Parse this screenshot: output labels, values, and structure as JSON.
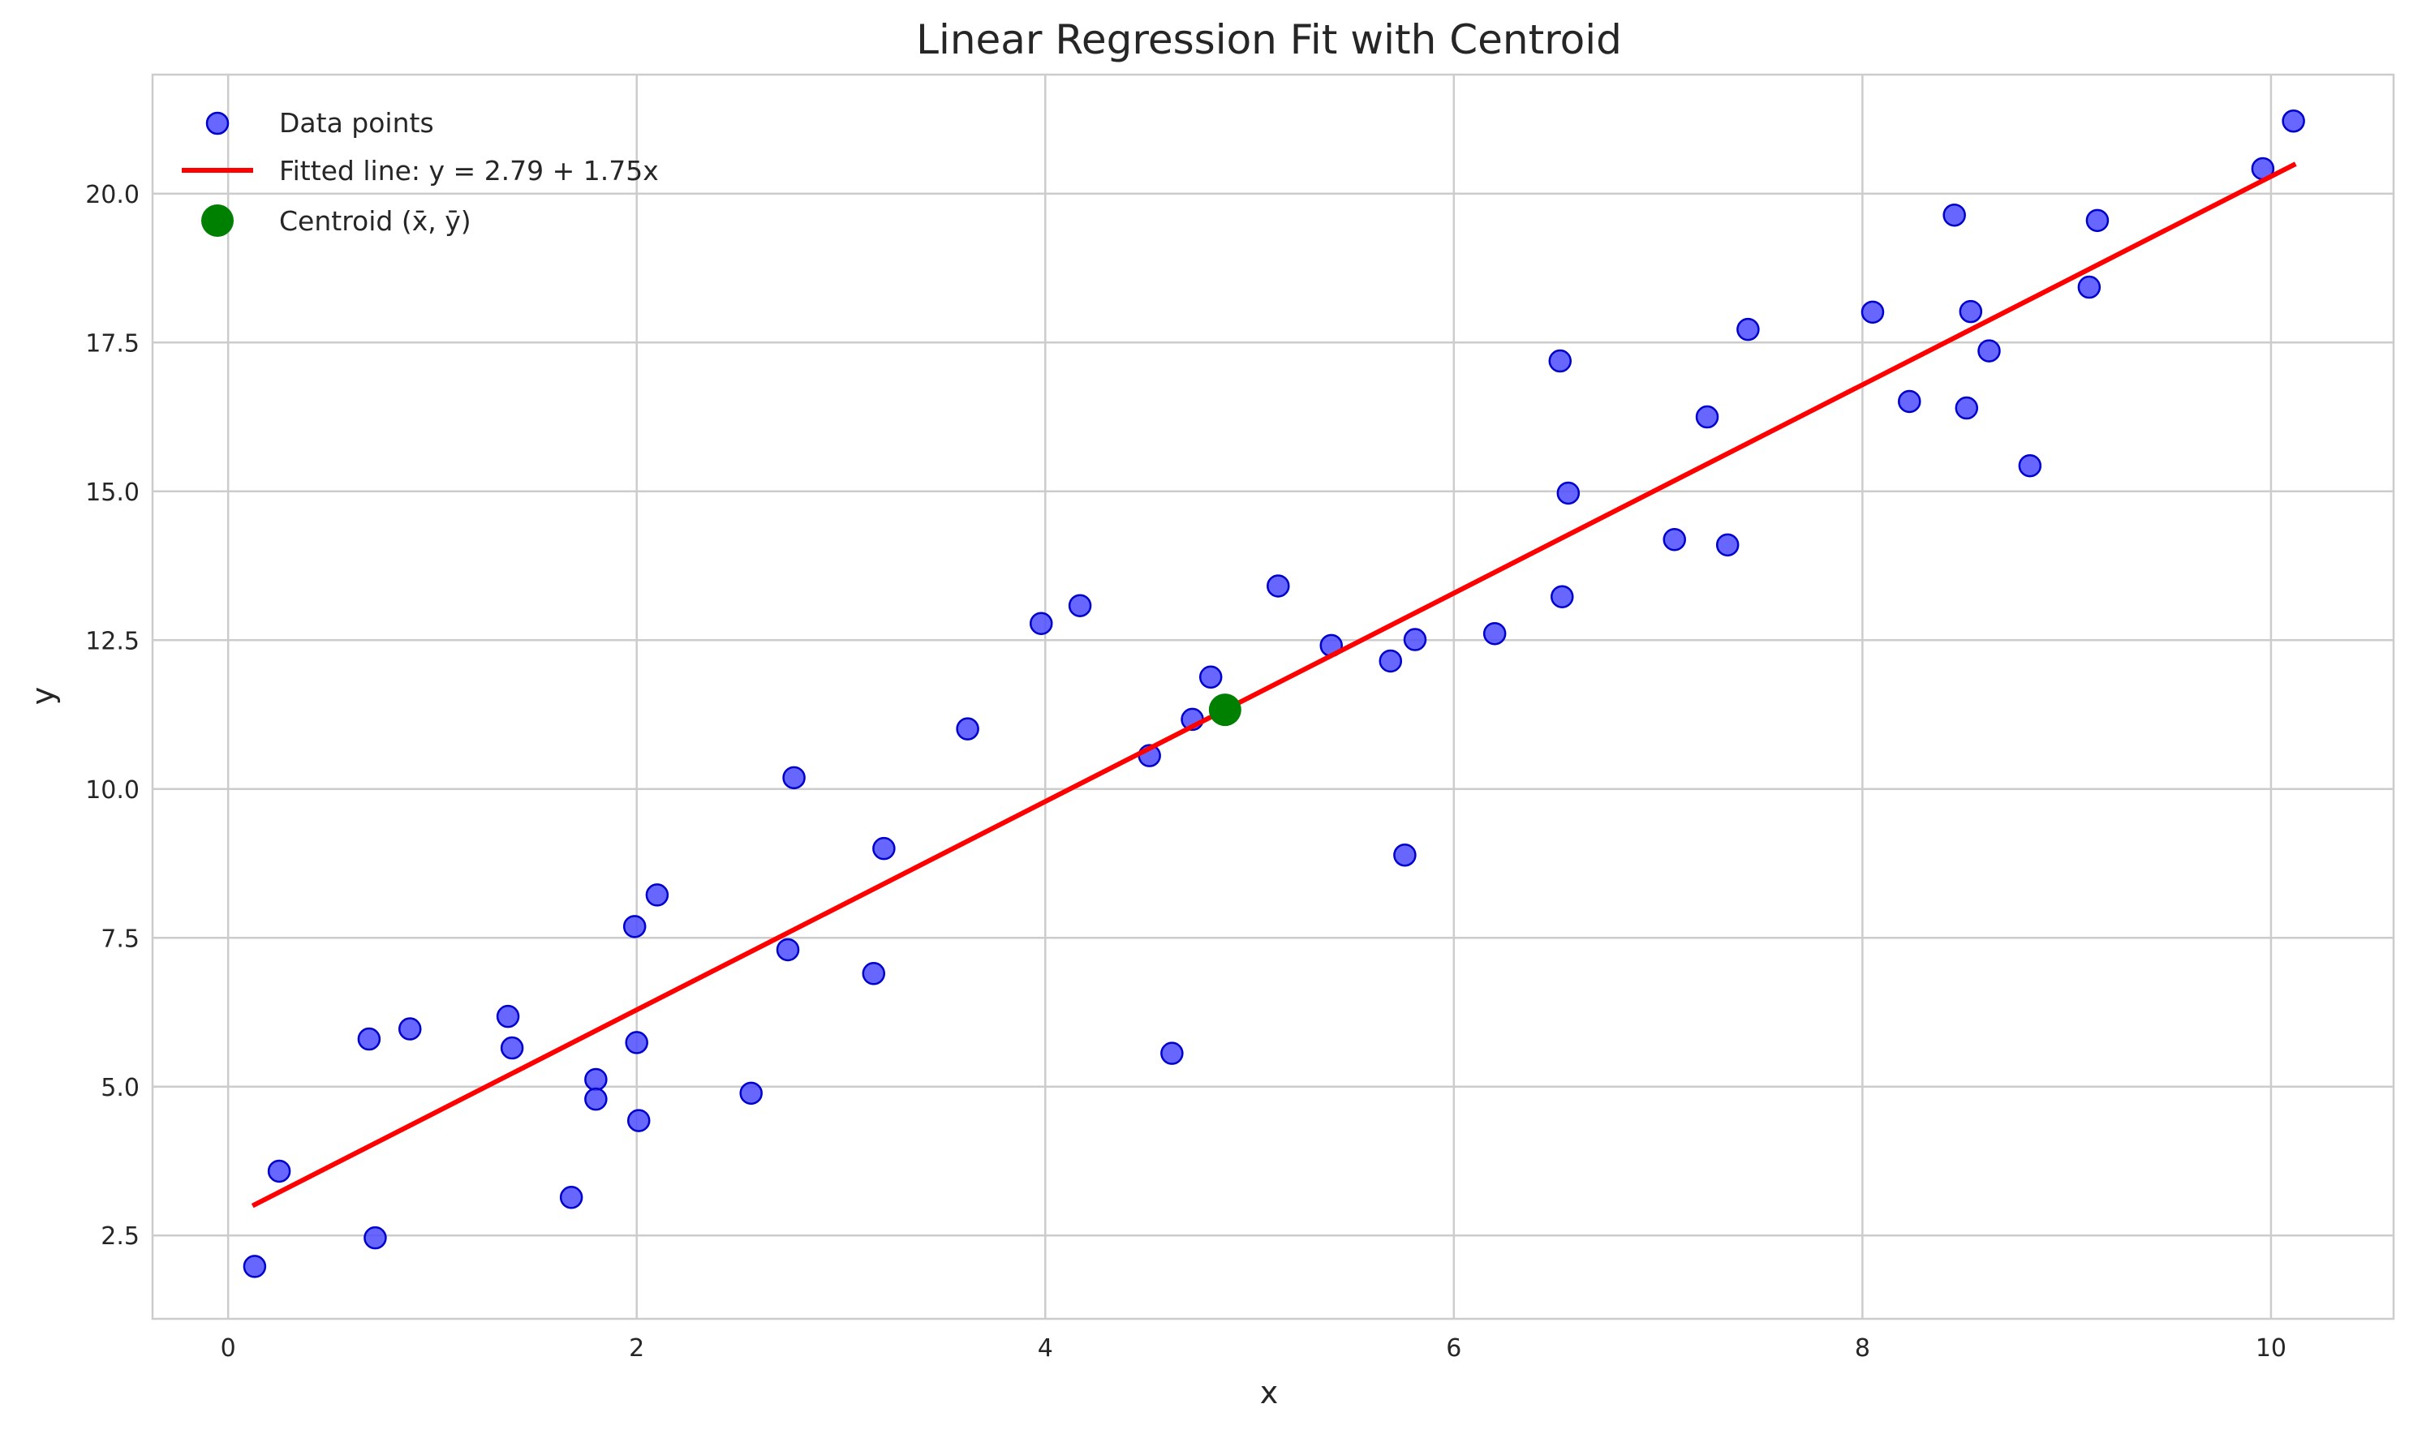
{
  "chart_data": {
    "type": "scatter",
    "title": "Linear Regression Fit with Centroid",
    "xlabel": "x",
    "ylabel": "y",
    "xlim": [
      -0.37,
      10.6
    ],
    "ylim": [
      1.1,
      22.0
    ],
    "x_ticks": [
      0,
      2,
      4,
      6,
      8,
      10
    ],
    "x_tick_labels": [
      "0",
      "2",
      "4",
      "6",
      "8",
      "10"
    ],
    "y_ticks": [
      2.5,
      5.0,
      7.5,
      10.0,
      12.5,
      15.0,
      17.5,
      20.0
    ],
    "y_tick_labels": [
      "2.5",
      "5.0",
      "7.5",
      "10.0",
      "12.5",
      "15.0",
      "17.5",
      "20.0"
    ],
    "grid": true,
    "legend_position": "top-left",
    "colors": {
      "points": "#4c4cff",
      "points_edge": "#0000cc",
      "line": "#ff0000",
      "centroid": "#008000",
      "grid": "#cccccc",
      "frame": "#cccccc"
    },
    "series": [
      {
        "name": "Data points",
        "kind": "scatter",
        "points": [
          [
            0.13,
            1.98
          ],
          [
            0.25,
            3.58
          ],
          [
            0.69,
            5.8
          ],
          [
            0.72,
            2.46
          ],
          [
            0.89,
            5.97
          ],
          [
            1.37,
            6.18
          ],
          [
            1.39,
            5.65
          ],
          [
            1.68,
            3.14
          ],
          [
            1.8,
            5.12
          ],
          [
            1.8,
            4.79
          ],
          [
            1.99,
            7.69
          ],
          [
            2.0,
            5.74
          ],
          [
            2.01,
            4.43
          ],
          [
            2.1,
            8.22
          ],
          [
            2.56,
            4.89
          ],
          [
            2.74,
            7.3
          ],
          [
            2.77,
            10.19
          ],
          [
            3.16,
            6.9
          ],
          [
            3.21,
            9.0
          ],
          [
            3.62,
            11.01
          ],
          [
            3.98,
            12.78
          ],
          [
            4.17,
            13.08
          ],
          [
            4.51,
            10.56
          ],
          [
            4.62,
            5.56
          ],
          [
            4.72,
            11.17
          ],
          [
            4.81,
            11.88
          ],
          [
            5.14,
            13.41
          ],
          [
            5.4,
            12.41
          ],
          [
            5.69,
            12.15
          ],
          [
            5.76,
            8.89
          ],
          [
            5.81,
            12.51
          ],
          [
            6.2,
            12.61
          ],
          [
            6.52,
            17.19
          ],
          [
            6.53,
            13.23
          ],
          [
            6.56,
            14.97
          ],
          [
            7.08,
            14.19
          ],
          [
            7.24,
            16.25
          ],
          [
            7.34,
            14.1
          ],
          [
            7.44,
            17.72
          ],
          [
            8.05,
            18.01
          ],
          [
            8.23,
            16.51
          ],
          [
            8.45,
            19.64
          ],
          [
            8.51,
            16.4
          ],
          [
            8.53,
            18.02
          ],
          [
            8.62,
            17.36
          ],
          [
            8.82,
            15.43
          ],
          [
            9.11,
            18.43
          ],
          [
            9.15,
            19.55
          ],
          [
            9.96,
            20.42
          ],
          [
            10.11,
            21.22
          ]
        ]
      },
      {
        "name": "Fitted line: y = 2.79 + 1.75x",
        "kind": "line",
        "intercept": 2.79,
        "slope": 1.75,
        "x_range": [
          0.13,
          10.11
        ]
      },
      {
        "name": "Centroid (x̄, ȳ)",
        "kind": "point",
        "x": 4.88,
        "y": 11.33
      }
    ]
  }
}
